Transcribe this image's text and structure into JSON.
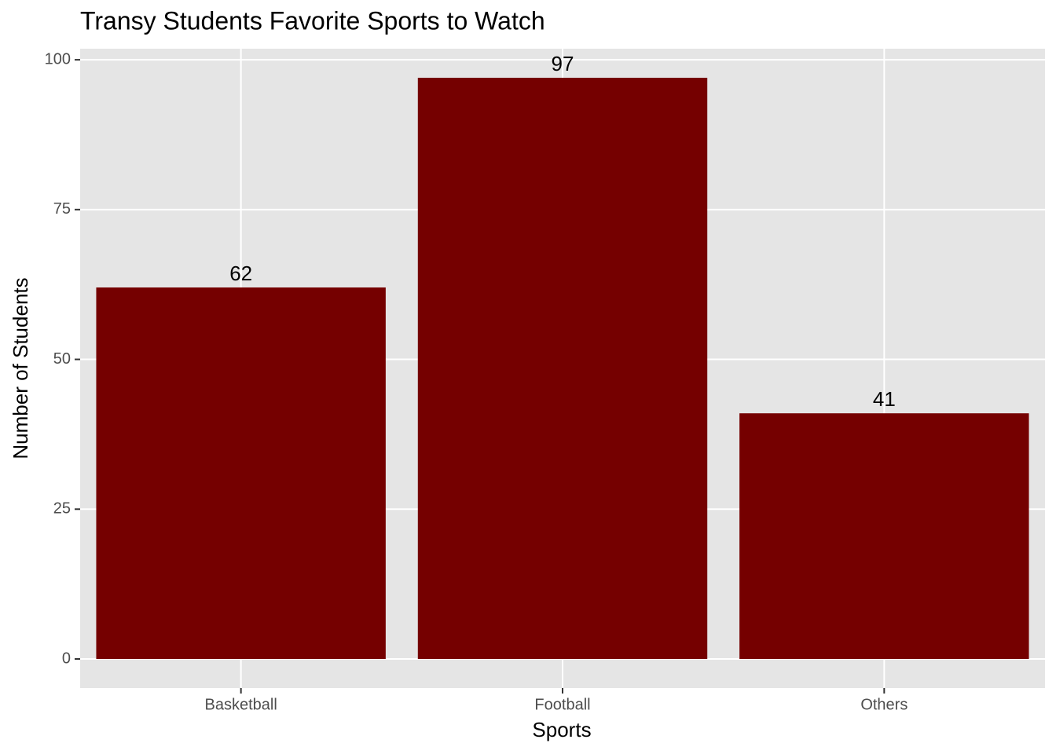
{
  "chart_data": {
    "type": "bar",
    "title": "Transy Students Favorite Sports to Watch",
    "x_label": "Sports",
    "y_label": "Number of Students",
    "categories": [
      "Basketball",
      "Football",
      "Others"
    ],
    "values": [
      62,
      97,
      41
    ],
    "color": "#750000",
    "ylim": [
      -4.85,
      101.85
    ],
    "yticks": [
      0,
      25,
      50,
      75,
      100
    ],
    "grid": true
  }
}
